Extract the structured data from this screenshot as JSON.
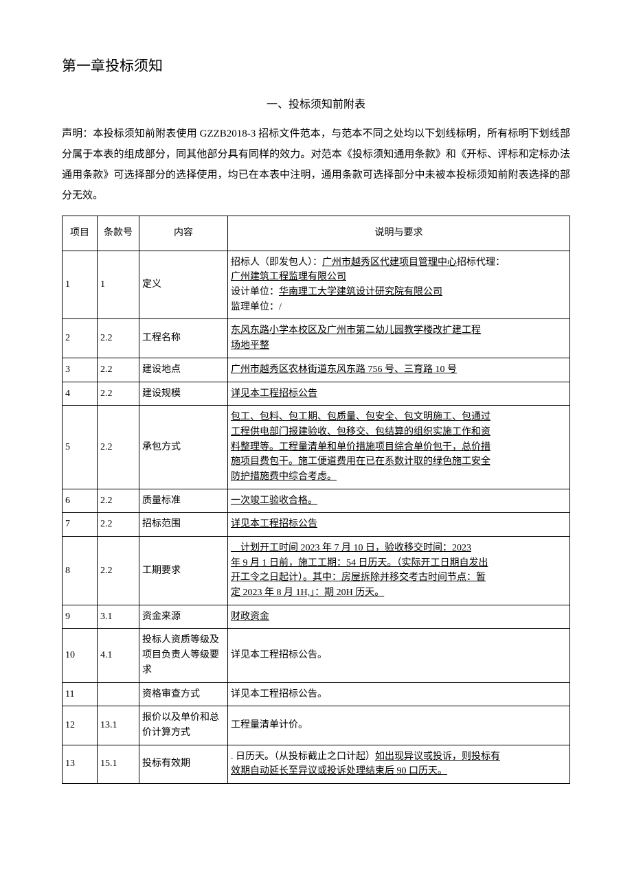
{
  "chapter_title": "第一章投标须知",
  "section_title": "一、投标须知前附表",
  "declaration": "声明：本投标须知前附表使用 GZZB2018-3 招标文件范本，与范本不同之处均以下划线标明，所有标明下划线部分属于本表的组成部分，同其他部分具有同样的效力。对范本《投标须知通用条款》和《开标、评标和定标办法通用条款》可选择部分的选择使用，均已在本表中注明，通用条款可选择部分中未被本投标须知前附表选择的部分无效。",
  "headers": {
    "idx": "项目",
    "clause": "条款号",
    "content": "内容",
    "desc": "说明与要求"
  },
  "rows": [
    {
      "idx": "1",
      "clause": "1",
      "content": "定义",
      "desc_lines": [
        {
          "prefix": "招标人（即发包人）：",
          "underlined": "广州市越秀区代建项目管理中心",
          "suffix": "招标代理："
        },
        {
          "prefix": "",
          "underlined": "广州建筑工程监理有限公司",
          "suffix": ""
        },
        {
          "prefix": "设计单位：",
          "underlined": "华南理工大学建筑设计研究院有限公司",
          "suffix": ""
        },
        {
          "prefix": "监理单位：/",
          "underlined": "",
          "suffix": ""
        }
      ]
    },
    {
      "idx": "2",
      "clause": "2.2",
      "content": "工程名称",
      "desc_lines": [
        {
          "prefix": "",
          "underlined": "东风东路小学本校区及广州市第二幼儿园教学楼改扩建工程",
          "suffix": ""
        },
        {
          "prefix": "",
          "underlined": "场地平整",
          "suffix": ""
        }
      ]
    },
    {
      "idx": "3",
      "clause": "2.2",
      "content": "建设地点",
      "desc_lines": [
        {
          "prefix": "",
          "underlined": "广州市越秀区农林街道东风东路 756 号、三育路 10 号",
          "suffix": ""
        }
      ]
    },
    {
      "idx": "4",
      "clause": "2.2",
      "content": "建设规模",
      "desc_lines": [
        {
          "prefix": "",
          "underlined": "详见本工程招标公告",
          "suffix": ""
        }
      ]
    },
    {
      "idx": "5",
      "clause": "2.2",
      "content": "承包方式",
      "desc_lines": [
        {
          "prefix": "",
          "underlined": "包工、包料、包工期、包质量、包安全、包文明施工、包通过",
          "suffix": ""
        },
        {
          "prefix": "",
          "underlined": "工程供电部门报建验收、包移交、包结算的组织实施工作和资",
          "suffix": ""
        },
        {
          "prefix": "",
          "underlined": "料整理等。工程量清单和单价措施项目综合单价包干，总价措",
          "suffix": ""
        },
        {
          "prefix": "",
          "underlined": "施项目费包干。施工便道费用在已在系数计取的绿色施工安全",
          "suffix": ""
        },
        {
          "prefix": "",
          "underlined": "防护措施费中综合考虑。",
          "suffix": ""
        }
      ]
    },
    {
      "idx": "6",
      "clause": "2.2",
      "content": "质量标准",
      "desc_lines": [
        {
          "prefix": "",
          "underlined": "一次竣工验收合格。",
          "suffix": ""
        }
      ]
    },
    {
      "idx": "7",
      "clause": "2.2",
      "content": "招标范围",
      "desc_lines": [
        {
          "prefix": "",
          "underlined": "详见本工程招标公告",
          "suffix": ""
        }
      ]
    },
    {
      "idx": "8",
      "clause": "2.2",
      "content": "工期要求",
      "desc_lines": [
        {
          "prefix": "",
          "underlined": "　计划开工时间 2023 年 7 月 10 日，验收移交时间：2023",
          "suffix": ""
        },
        {
          "prefix": "",
          "underlined": "年 9 月 1 日前，施工工期：54 日历天。（实际开工日期自发出",
          "suffix": ""
        },
        {
          "prefix": "",
          "underlined": "开工令之日起计）。其中：房屋拆除并移交考古时间节点：暂",
          "suffix": ""
        },
        {
          "prefix": "",
          "underlined": "定 2023 年 8 月 1H,」：期 20H 历天。",
          "suffix": ""
        }
      ]
    },
    {
      "idx": "9",
      "clause": "3.1",
      "content": "资金来源",
      "desc_lines": [
        {
          "prefix": "",
          "underlined": "财政资金",
          "suffix": ""
        }
      ]
    },
    {
      "idx": "10",
      "clause": "4.1",
      "content": "投标人资质等级及项目负责人等级要求",
      "desc_lines": [
        {
          "prefix": "详见本工程招标公告。",
          "underlined": "",
          "suffix": ""
        }
      ]
    },
    {
      "idx": "11",
      "clause": "",
      "content": "资格审查方式",
      "desc_lines": [
        {
          "prefix": "详见本工程招标公告。",
          "underlined": "",
          "suffix": ""
        }
      ]
    },
    {
      "idx": "12",
      "clause": "13.1",
      "content": "报价以及单价和总价计算方式",
      "desc_lines": [
        {
          "prefix": "工程量清单计价。",
          "underlined": "",
          "suffix": ""
        }
      ]
    },
    {
      "idx": "13",
      "clause": "15.1",
      "content": "投标有效期",
      "desc_lines": [
        {
          "prefix": ". 日历天。（从投标截止之口计起）",
          "underlined": "如出现异议或投诉，则投标有",
          "suffix": ""
        },
        {
          "prefix": "",
          "underlined": "效期自动延长至异议或投诉处理结束后 90 口历天。",
          "suffix": ""
        }
      ]
    }
  ]
}
